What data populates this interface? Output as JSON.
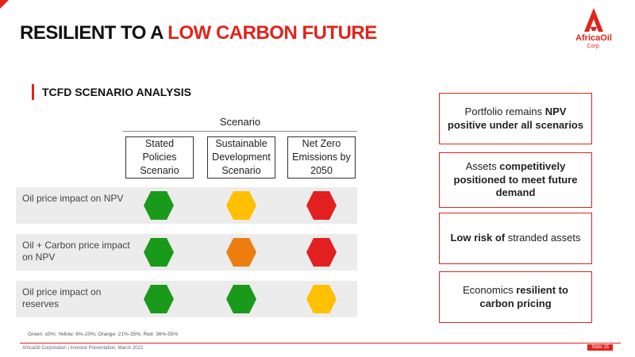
{
  "header": {
    "title_prefix": "RESILIENT TO A ",
    "title_highlight": "LOW CARBON FUTURE"
  },
  "logo": {
    "name": "AfricaOil",
    "sub": "Corp.",
    "icon": "africa-oil-triangle-icon"
  },
  "section": {
    "title": "TCFD SCENARIO ANALYSIS"
  },
  "table": {
    "group_label": "Scenario",
    "columns": [
      "Stated Policies Scenario",
      "Sustainable Development Scenario",
      "Net Zero Emissions by 2050"
    ],
    "rows": [
      {
        "label": "Oil price impact on NPV",
        "ratings": [
          "green",
          "yellow",
          "red"
        ]
      },
      {
        "label": "Oil + Carbon price impact on NPV",
        "ratings": [
          "green",
          "orange",
          "red"
        ]
      },
      {
        "label": "Oil price impact on reserves",
        "ratings": [
          "green",
          "green",
          "yellow"
        ]
      }
    ]
  },
  "colors": {
    "accent": "#e2231a",
    "green": "#1a9a1a",
    "yellow": "#ffc000",
    "orange": "#ed7d0e",
    "red": "#e32020"
  },
  "boxes": [
    [
      {
        "t": "Portfolio remains ",
        "b": false
      },
      {
        "t": "NPV positive under all scenarios",
        "b": true
      }
    ],
    [
      {
        "t": "Assets ",
        "b": false
      },
      {
        "t": "competitively positioned to meet future demand",
        "b": true
      }
    ],
    [
      {
        "t": "Low risk of",
        "b": true
      },
      {
        "t": " stranded assets",
        "b": false
      }
    ],
    [
      {
        "t": "Economics ",
        "b": false
      },
      {
        "t": "resilient to carbon pricing",
        "b": true
      }
    ]
  ],
  "legend": "Green: ≤5%; Yellow: 6%-20%; Orange: 21%-35%; Red: 36%-55%",
  "footer": {
    "text": "AfricaOil Corporation | Investor Presentation, March 2022",
    "slide": "Slide 15"
  }
}
